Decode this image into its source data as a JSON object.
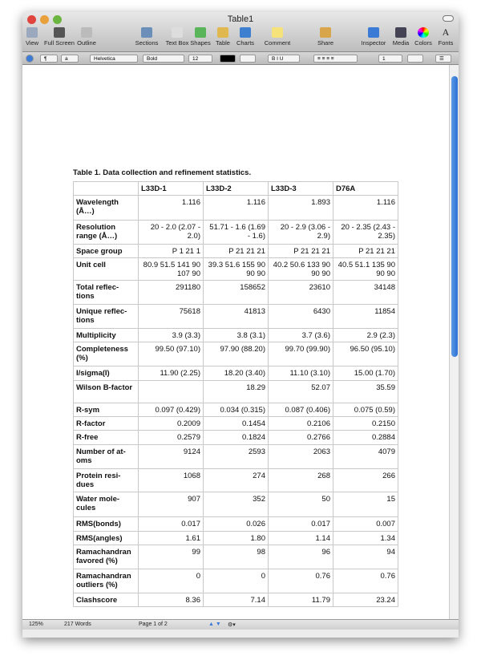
{
  "window": {
    "title": "Table1"
  },
  "toolbar": [
    "View",
    "Full Screen",
    "Outline",
    "Sections",
    "Text Box",
    "Shapes",
    "Table",
    "Charts",
    "Comment",
    "Share",
    "Inspector",
    "Media",
    "Colors",
    "Fonts"
  ],
  "format_bar": {
    "paragraph": "¶",
    "char": "a",
    "font": "Helvetica",
    "style": "Bold",
    "size": "12",
    "spacing": "1",
    "text_color": "#000000"
  },
  "caption": "Table 1.  Data collection and refinement statistics.",
  "table": {
    "headers": [
      "",
      "L33D-1",
      "L33D-2",
      "L33D-3",
      "D76A"
    ],
    "rows": [
      [
        "Wavelength (Å…)",
        "1.116",
        "1.116",
        "1.893",
        "1.116"
      ],
      [
        "Resolution range (Å…)",
        "20  - 2.0 (2.07  - 2.0)",
        "51.71  - 1.6 (1.69 - 1.6)",
        "20  - 2.9 (3.06  - 2.9)",
        "20  - 2.35 (2.43  - 2.35)"
      ],
      [
        "Space group",
        "P 1 21 1",
        "P 21 21 21",
        "P 21 21 21",
        "P 21 21 21"
      ],
      [
        "Unit cell",
        "80.9 51.5 141 90 107 90",
        "39.3 51.6 155 90 90 90",
        "40.2 50.6 133 90 90 90",
        "40.5 51.1 135 90 90 90"
      ],
      [
        "Total reflec-tions",
        "291180",
        "158652",
        "23610",
        "34148"
      ],
      [
        "Unique reflec-tions",
        "75618",
        "41813",
        "6430",
        "11854"
      ],
      [
        "Multiplicity",
        "3.9 (3.3)",
        "3.8 (3.1)",
        "3.7 (3.6)",
        "2.9 (2.3)"
      ],
      [
        "Completeness (%)",
        "99.50 (97.10)",
        "97.90 (88.20)",
        "99.70 (99.90)",
        "96.50 (95.10)"
      ],
      [
        "I/sigma(I)",
        "11.90 (2.25)",
        "18.20 (3.40)",
        "11.10 (3.10)",
        "15.00 (1.70)"
      ],
      [
        "Wilson B-factor",
        "",
        "18.29",
        "52.07",
        "35.59"
      ],
      [
        "R-sym",
        "0.097 (0.429)",
        "0.034 (0.315)",
        "0.087 (0.406)",
        "0.075 (0.59)"
      ],
      [
        "R-factor",
        "0.2009",
        "0.1454",
        "0.2106",
        "0.2150"
      ],
      [
        "R-free",
        "0.2579",
        "0.1824",
        "0.2766",
        "0.2884"
      ],
      [
        "Number of at-oms",
        "9124",
        "2593",
        "2063",
        "4079"
      ],
      [
        "Protein resi-dues",
        "1068",
        "274",
        "268",
        "266"
      ],
      [
        "Water mole-cules",
        "907",
        "352",
        "50",
        "15"
      ],
      [
        "RMS(bonds)",
        "0.017",
        "0.026",
        "0.017",
        "0.007"
      ],
      [
        "RMS(angles)",
        "1.61",
        "1.80",
        "1.14",
        "1.34"
      ],
      [
        "Ramachandran favored (%)",
        "99",
        "98",
        "96",
        "94"
      ],
      [
        "Ramachandran outliers (%)",
        "0",
        "0",
        "0.76",
        "0.76"
      ],
      [
        "Clashscore",
        "8.36",
        "7.14",
        "11.79",
        "23.24"
      ]
    ]
  },
  "status": {
    "zoom": "125%",
    "words": "217 Words",
    "page": "Page 1 of 2"
  }
}
